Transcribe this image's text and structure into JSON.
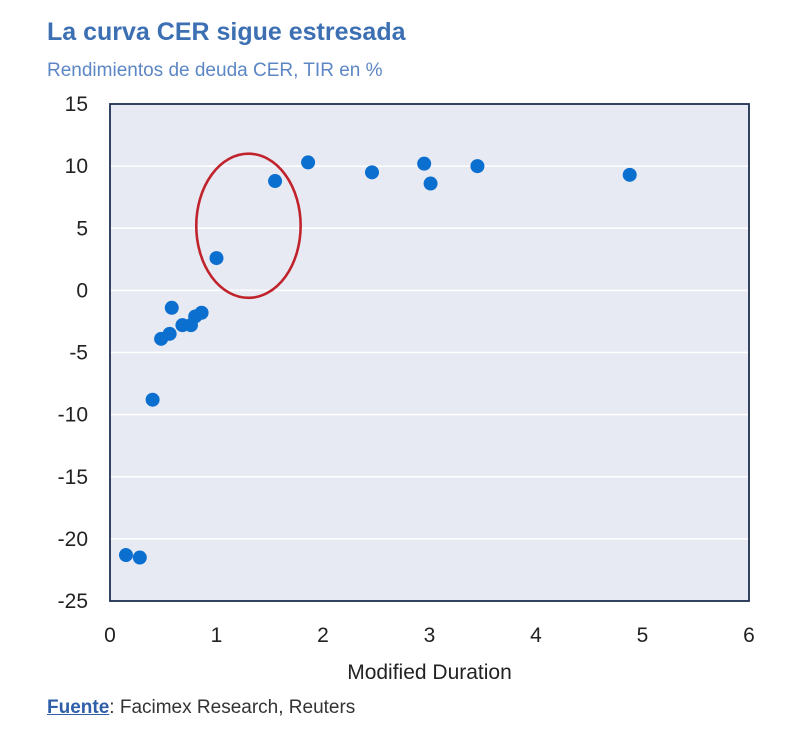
{
  "chart_data": {
    "type": "scatter",
    "title": "La curva CER sigue estresada",
    "subtitle": "Rendimientos de deuda CER, TIR en %",
    "xlabel": "Modified Duration",
    "ylabel": "",
    "xlim": [
      0,
      6
    ],
    "ylim": [
      -25,
      15
    ],
    "xticks": [
      "0",
      "1",
      "2",
      "3",
      "4",
      "5",
      "6"
    ],
    "yticks": [
      "15",
      "10",
      "5",
      "0",
      "-5",
      "-10",
      "-15",
      "-20",
      "-25"
    ],
    "grid": "horizontal",
    "colors": {
      "points": "#0b6fd0",
      "highlight": "#c0232c",
      "plot_bg": "#e8eaf3",
      "frame": "#1f2f4f"
    },
    "points": [
      {
        "x": 0.15,
        "y": -21.3
      },
      {
        "x": 0.28,
        "y": -21.5
      },
      {
        "x": 0.4,
        "y": -8.8
      },
      {
        "x": 0.48,
        "y": -3.9
      },
      {
        "x": 0.56,
        "y": -3.5
      },
      {
        "x": 0.58,
        "y": -1.4
      },
      {
        "x": 0.68,
        "y": -2.8
      },
      {
        "x": 0.76,
        "y": -2.8
      },
      {
        "x": 0.8,
        "y": -2.1
      },
      {
        "x": 0.86,
        "y": -1.8
      },
      {
        "x": 1.0,
        "y": 2.6
      },
      {
        "x": 1.55,
        "y": 8.8
      },
      {
        "x": 1.86,
        "y": 10.3
      },
      {
        "x": 2.46,
        "y": 9.5
      },
      {
        "x": 2.95,
        "y": 10.2
      },
      {
        "x": 3.01,
        "y": 8.6
      },
      {
        "x": 3.45,
        "y": 10.0
      },
      {
        "x": 4.88,
        "y": 9.3
      }
    ],
    "highlight_region": {
      "shape": "ellipse",
      "x_center": 1.3,
      "y_center": 5.2,
      "x_radius": 0.49,
      "y_radius": 5.8
    }
  },
  "source": {
    "label": "Fuente",
    "text": ": Facimex Research, Reuters"
  }
}
